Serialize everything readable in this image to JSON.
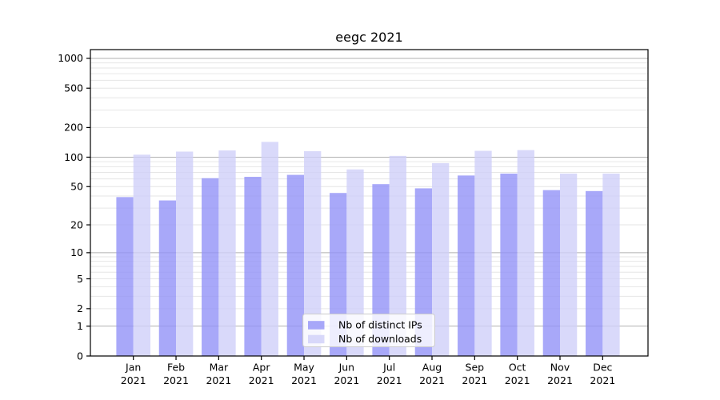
{
  "figure": {
    "title": "eegc 2021"
  },
  "chart_data": {
    "type": "bar",
    "title": "eegc 2021",
    "categories": [
      "Jan",
      "Feb",
      "Mar",
      "Apr",
      "May",
      "Jun",
      "Jul",
      "Aug",
      "Sep",
      "Oct",
      "Nov",
      "Dec"
    ],
    "year_label": "2021",
    "series": [
      {
        "name": "Nb of distinct IPs",
        "color": "#9292f8",
        "values": [
          39,
          36,
          61,
          63,
          66,
          43,
          53,
          48,
          65,
          68,
          46,
          45
        ]
      },
      {
        "name": "Nb of downloads",
        "color": "#cfcff9",
        "values": [
          106,
          114,
          117,
          143,
          115,
          75,
          103,
          87,
          116,
          118,
          68,
          68
        ]
      }
    ],
    "yscale": "log1p",
    "ylim": [
      0,
      1226
    ],
    "yticks": [
      0,
      1,
      2,
      5,
      10,
      20,
      50,
      100,
      200,
      500,
      1000
    ],
    "ytick_labels": [
      "0",
      "1",
      "2",
      "5",
      "10",
      "20",
      "50",
      "100",
      "200",
      "500",
      "1000"
    ],
    "major_grid_values": [
      1,
      10,
      100,
      1000
    ],
    "grid": true,
    "legend_position": "lower center",
    "colors": {
      "bar_alpha": 0.8,
      "major_grid": "#b0b0b0",
      "minor_grid": "#e6e6e6",
      "spine": "#000000",
      "legend_bg": "rgba(255,255,255,0.8)",
      "legend_border": "#cccccc"
    }
  }
}
